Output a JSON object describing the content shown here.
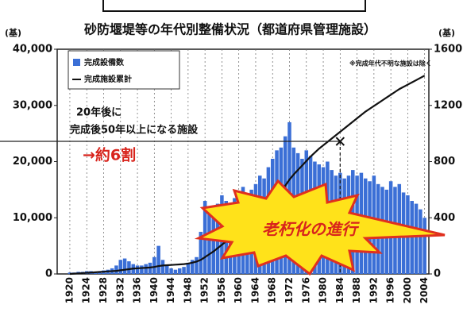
{
  "chart_data": {
    "type": "bar-line",
    "title": "砂防堰堤等の年代別整備状況（都道府県管理施設）",
    "y_unit": "(基)",
    "y2_unit": "(基)",
    "note": "※完成年代不明な施設は除く",
    "annotation_lines": [
      "20年後に",
      "完成後50年以上になる施設"
    ],
    "annotation_result": "→約6割",
    "callout": "老朽化の進行",
    "annotation_point": {
      "x": 1984,
      "y": 23600
    },
    "x": [
      1920,
      1921,
      1922,
      1923,
      1924,
      1925,
      1926,
      1927,
      1928,
      1929,
      1930,
      1931,
      1932,
      1933,
      1934,
      1935,
      1936,
      1937,
      1938,
      1939,
      1940,
      1941,
      1942,
      1943,
      1944,
      1945,
      1946,
      1947,
      1948,
      1949,
      1950,
      1951,
      1952,
      1953,
      1954,
      1955,
      1956,
      1957,
      1958,
      1959,
      1960,
      1961,
      1962,
      1963,
      1964,
      1965,
      1966,
      1967,
      1968,
      1969,
      1970,
      1971,
      1972,
      1973,
      1974,
      1975,
      1976,
      1977,
      1978,
      1979,
      1980,
      1981,
      1982,
      1983,
      1984,
      1985,
      1986,
      1987,
      1988,
      1989,
      1990,
      1991,
      1992,
      1993,
      1994,
      1995,
      1996,
      1997,
      1998,
      1999,
      2000,
      2001,
      2002,
      2003,
      2004
    ],
    "series": [
      {
        "name": "完成設備数",
        "color": "#3b6fd6",
        "axis": "y2",
        "values": [
          10,
          10,
          15,
          15,
          20,
          20,
          15,
          20,
          25,
          30,
          40,
          60,
          100,
          110,
          90,
          70,
          60,
          60,
          70,
          80,
          120,
          200,
          100,
          60,
          40,
          30,
          40,
          50,
          80,
          100,
          120,
          300,
          520,
          450,
          480,
          500,
          560,
          520,
          480,
          540,
          580,
          620,
          560,
          600,
          640,
          700,
          680,
          760,
          820,
          880,
          900,
          980,
          1080,
          900,
          860,
          820,
          880,
          840,
          800,
          780,
          760,
          800,
          740,
          700,
          720,
          680,
          700,
          740,
          700,
          720,
          680,
          660,
          700,
          640,
          620,
          600,
          660,
          620,
          640,
          580,
          560,
          520,
          500,
          460,
          400
        ]
      },
      {
        "name": "完成施設累計",
        "color": "#111111",
        "values": [
          0,
          50,
          100,
          150,
          200,
          250,
          300,
          350,
          400,
          450,
          500,
          550,
          650,
          750,
          850,
          950,
          1000,
          1050,
          1100,
          1150,
          1250,
          1400,
          1500,
          1550,
          1600,
          1650,
          1700,
          1750,
          1850,
          2000,
          2200,
          2500,
          3000,
          3500,
          4000,
          4600,
          5200,
          5800,
          6400,
          7000,
          7600,
          8200,
          8800,
          9400,
          10000,
          10700,
          11400,
          12100,
          12900,
          13800,
          14700,
          15700,
          16800,
          17700,
          18500,
          19300,
          20100,
          20900,
          21600,
          22300,
          22900,
          23500,
          24100,
          24700,
          25300,
          25900,
          26500,
          27100,
          27700,
          28300,
          28900,
          29400,
          29900,
          30400,
          30900,
          31400,
          31900,
          32400,
          32900,
          33300,
          33700,
          34100,
          34500,
          34900,
          35300
        ]
      }
    ],
    "xlim": [
      1917,
      2005
    ],
    "xticks": [
      1920,
      1924,
      1928,
      1932,
      1936,
      1940,
      1944,
      1948,
      1952,
      1956,
      1960,
      1964,
      1968,
      1972,
      1976,
      1980,
      1984,
      1988,
      1992,
      1996,
      2000,
      2004
    ],
    "ylim": [
      0,
      40000
    ],
    "yticks": [
      0,
      {
        "value": 10000,
        "label": "10,000"
      },
      {
        "value": 20000,
        "label": "20,000"
      },
      {
        "value": 30000,
        "label": "30,000"
      },
      {
        "value": 40000,
        "label": "40,000"
      }
    ],
    "y2lim": [
      0,
      1600
    ],
    "y2ticks": [
      0,
      400,
      800,
      1200,
      1600
    ],
    "grid": true
  }
}
